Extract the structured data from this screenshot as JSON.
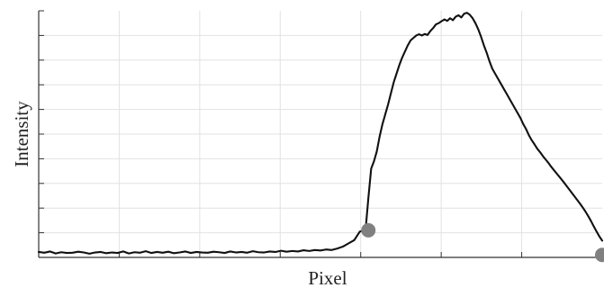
{
  "chart_data": {
    "type": "line",
    "title": "",
    "xlabel": "Pixel",
    "ylabel": "Intensity",
    "xlim": [
      0,
      100
    ],
    "ylim": [
      0,
      100
    ],
    "grid": true,
    "series": [
      {
        "color": "#111111",
        "points": [
          [
            0,
            2.2
          ],
          [
            1,
            1.9
          ],
          [
            2,
            2.4
          ],
          [
            3,
            1.6
          ],
          [
            4,
            2.1
          ],
          [
            5,
            1.8
          ],
          [
            6,
            1.9
          ],
          [
            7,
            2.3
          ],
          [
            8,
            2.0
          ],
          [
            9,
            1.5
          ],
          [
            10,
            2.0
          ],
          [
            11,
            2.2
          ],
          [
            12,
            1.7
          ],
          [
            13,
            2.0
          ],
          [
            14,
            1.8
          ],
          [
            15,
            2.4
          ],
          [
            16,
            1.6
          ],
          [
            17,
            2.1
          ],
          [
            18,
            1.9
          ],
          [
            19,
            2.5
          ],
          [
            20,
            1.8
          ],
          [
            21,
            2.2
          ],
          [
            22,
            1.9
          ],
          [
            23,
            2.3
          ],
          [
            24,
            1.7
          ],
          [
            25,
            2.0
          ],
          [
            26,
            2.4
          ],
          [
            27,
            1.8
          ],
          [
            28,
            2.2
          ],
          [
            29,
            2.0
          ],
          [
            30,
            1.9
          ],
          [
            31,
            2.3
          ],
          [
            32,
            2.1
          ],
          [
            33,
            1.8
          ],
          [
            34,
            2.4
          ],
          [
            35,
            2.0
          ],
          [
            36,
            2.2
          ],
          [
            37,
            1.9
          ],
          [
            38,
            2.5
          ],
          [
            39,
            2.1
          ],
          [
            40,
            2.0
          ],
          [
            41,
            2.4
          ],
          [
            42,
            2.2
          ],
          [
            43,
            2.7
          ],
          [
            44,
            2.3
          ],
          [
            45,
            2.6
          ],
          [
            46,
            2.4
          ],
          [
            47,
            2.9
          ],
          [
            48,
            2.6
          ],
          [
            49,
            3.0
          ],
          [
            50,
            2.8
          ],
          [
            51,
            3.2
          ],
          [
            52,
            3.0
          ],
          [
            53,
            3.6
          ],
          [
            54,
            4.4
          ],
          [
            55,
            5.7
          ],
          [
            56,
            7.0
          ],
          [
            57,
            10.5
          ],
          [
            58,
            11.0
          ],
          [
            58.5,
            24.0
          ],
          [
            59,
            36.0
          ],
          [
            59.5,
            39.0
          ],
          [
            60,
            43.0
          ],
          [
            60.5,
            49.0
          ],
          [
            61,
            54.0
          ],
          [
            61.5,
            58.0
          ],
          [
            62,
            62.0
          ],
          [
            62.5,
            66.5
          ],
          [
            63,
            71.0
          ],
          [
            63.5,
            74.5
          ],
          [
            64,
            78.0
          ],
          [
            64.5,
            81.0
          ],
          [
            65,
            83.5
          ],
          [
            65.5,
            86.0
          ],
          [
            66,
            88.0
          ],
          [
            66.5,
            89.0
          ],
          [
            67,
            90.0
          ],
          [
            67.5,
            90.5
          ],
          [
            68,
            90.0
          ],
          [
            68.5,
            90.6
          ],
          [
            69,
            90.2
          ],
          [
            69.5,
            91.8
          ],
          [
            70,
            93.0
          ],
          [
            70.5,
            94.5
          ],
          [
            71,
            95.0
          ],
          [
            71.5,
            95.8
          ],
          [
            72,
            96.5
          ],
          [
            72.5,
            95.9
          ],
          [
            73,
            97.0
          ],
          [
            73.5,
            96.2
          ],
          [
            74,
            97.6
          ],
          [
            74.5,
            98.2
          ],
          [
            75,
            97.3
          ],
          [
            75.5,
            98.8
          ],
          [
            76,
            99.2
          ],
          [
            76.5,
            98.4
          ],
          [
            77,
            97.0
          ],
          [
            77.5,
            95.0
          ],
          [
            78,
            92.5
          ],
          [
            78.5,
            89.5
          ],
          [
            79,
            86.0
          ],
          [
            79.5,
            83.0
          ],
          [
            80,
            79.5
          ],
          [
            80.5,
            76.5
          ],
          [
            81,
            74.5
          ],
          [
            81.5,
            72.5
          ],
          [
            82,
            70.5
          ],
          [
            82.5,
            68.5
          ],
          [
            83,
            66.5
          ],
          [
            83.5,
            64.5
          ],
          [
            84,
            62.5
          ],
          [
            84.5,
            60.5
          ],
          [
            85,
            58.5
          ],
          [
            85.5,
            56.5
          ],
          [
            86,
            54.0
          ],
          [
            86.5,
            52.0
          ],
          [
            87,
            49.5
          ],
          [
            87.5,
            47.5
          ],
          [
            88,
            45.8
          ],
          [
            88.5,
            44.0
          ],
          [
            89,
            42.6
          ],
          [
            89.5,
            41.0
          ],
          [
            90,
            39.6
          ],
          [
            90.5,
            38.2
          ],
          [
            91,
            36.6
          ],
          [
            91.5,
            35.2
          ],
          [
            92,
            33.8
          ],
          [
            92.5,
            32.4
          ],
          [
            93,
            31.0
          ],
          [
            93.5,
            29.5
          ],
          [
            94,
            28.0
          ],
          [
            94.5,
            26.5
          ],
          [
            95,
            25.0
          ],
          [
            95.5,
            23.5
          ],
          [
            96,
            22.0
          ],
          [
            96.5,
            20.4
          ],
          [
            97,
            18.7
          ],
          [
            97.5,
            16.8
          ],
          [
            98,
            14.8
          ],
          [
            98.5,
            12.6
          ],
          [
            99,
            10.5
          ],
          [
            99.5,
            8.5
          ],
          [
            100,
            6.8
          ]
        ]
      }
    ],
    "markers": [
      {
        "x": 58.5,
        "y": 11.0,
        "color": "#808080"
      },
      {
        "x": 100,
        "y": 1.0,
        "color": "#808080"
      }
    ]
  }
}
